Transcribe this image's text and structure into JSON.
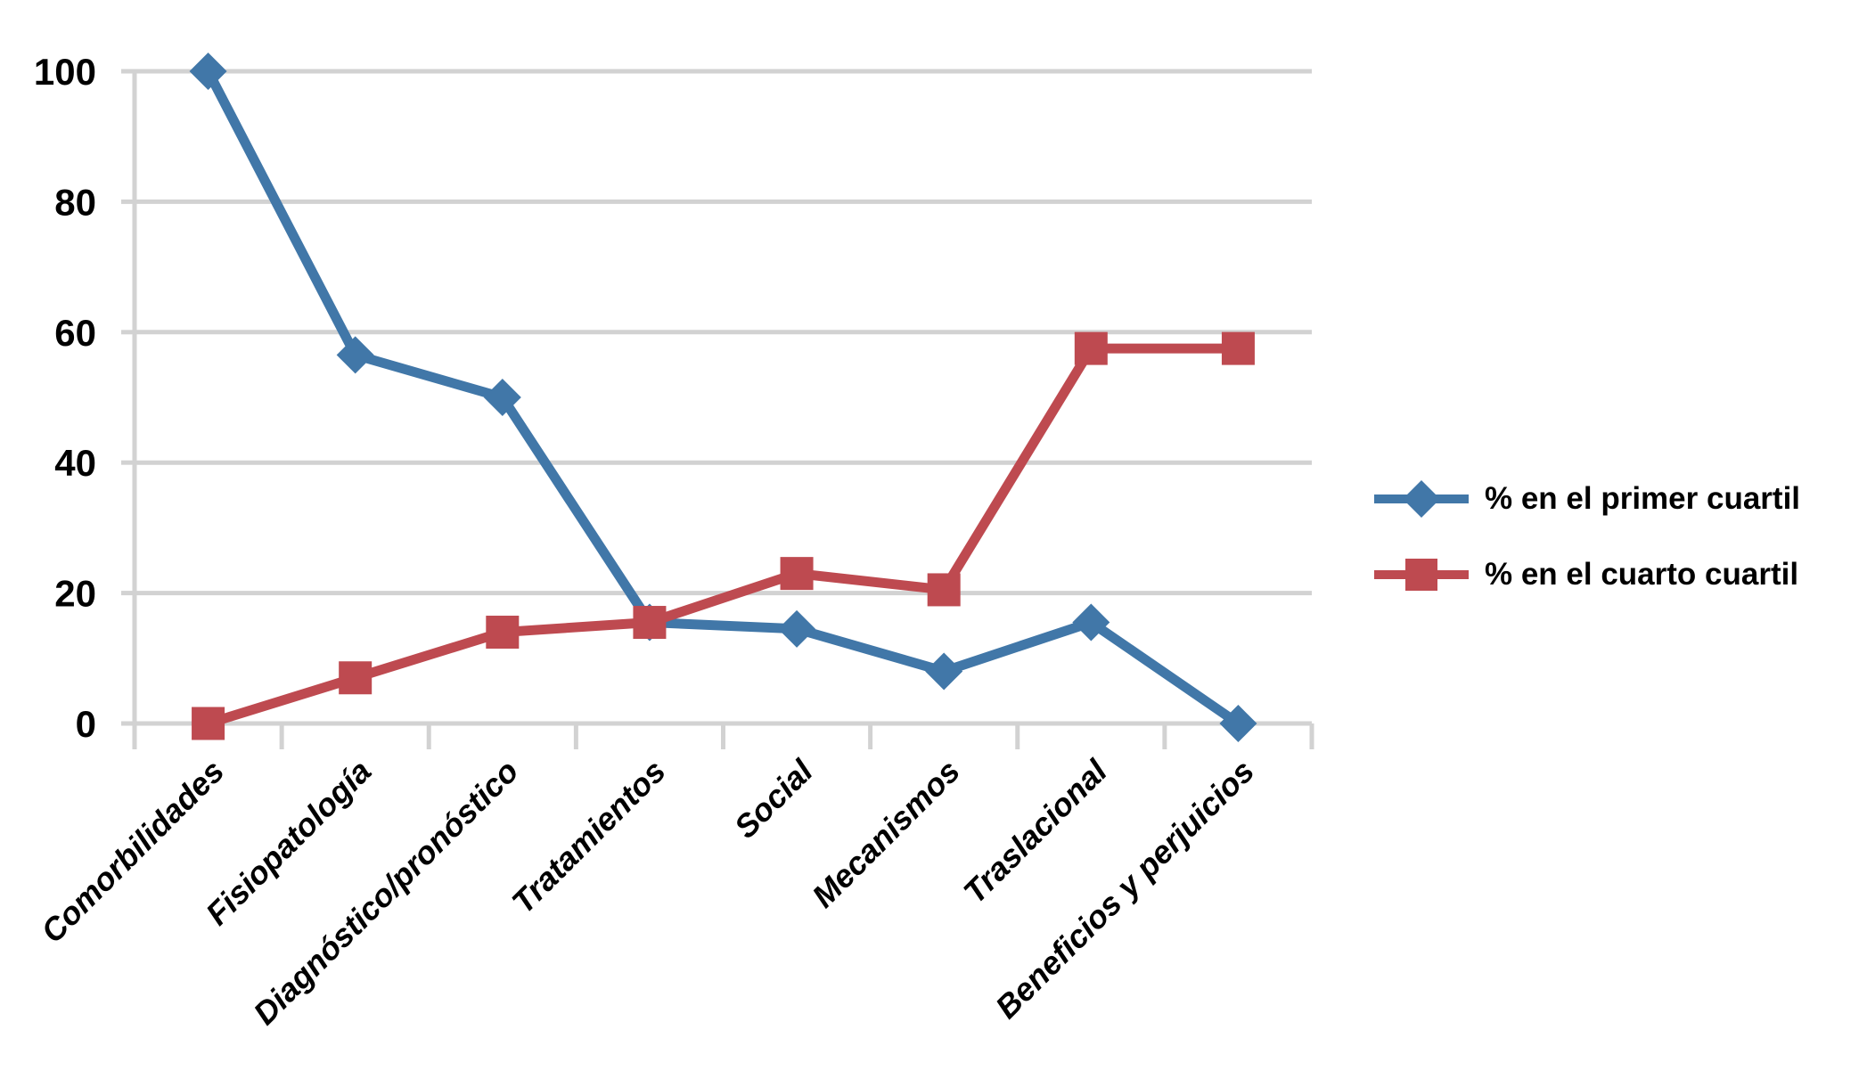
{
  "chart_data": {
    "type": "line",
    "title": "",
    "xlabel": "",
    "ylabel": "",
    "categories": [
      "Comorbilidades",
      "Fisiopatología",
      "Diagnóstico/pronóstico",
      "Tratamientos",
      "Social",
      "Mecanismos",
      "Traslacional",
      "Beneficios y perjuicios"
    ],
    "series": [
      {
        "name": "% en el primer cuartil",
        "marker": "diamond",
        "color": "#4177A8",
        "values": [
          100,
          56.5,
          50,
          15.5,
          14.5,
          8,
          15.5,
          0
        ]
      },
      {
        "name": "% en el cuarto cuartil",
        "marker": "square",
        "color": "#BE4A50",
        "values": [
          0,
          7,
          14,
          15.5,
          23,
          20.5,
          57.5,
          57.5
        ]
      }
    ],
    "y_axis": {
      "min": 0,
      "max": 100,
      "tick_labels": [
        "0",
        "20",
        "40",
        "60",
        "80",
        "100"
      ],
      "tick_values": [
        0,
        20,
        40,
        60,
        80,
        100
      ]
    },
    "grid": true,
    "gridline_color": "#D2D2D2",
    "legend_position": "right"
  }
}
